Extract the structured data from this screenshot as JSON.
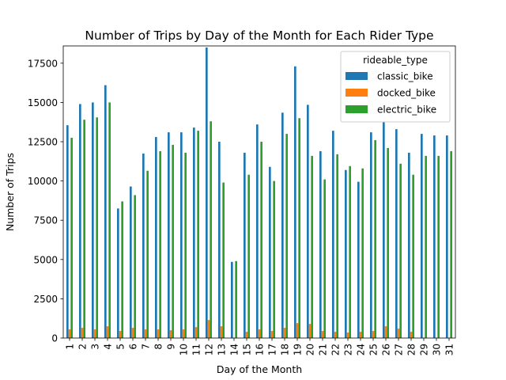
{
  "chart_data": {
    "type": "bar",
    "title": "Number of Trips by Day of the Month for Each Rider Type",
    "xlabel": "Day of the Month",
    "ylabel": "Number of Trips",
    "ylim": [
      0,
      18600
    ],
    "yticks": [
      0,
      2500,
      5000,
      7500,
      10000,
      12500,
      15000,
      17500
    ],
    "grid": false,
    "legend": {
      "title": "rideable_type",
      "placement": "top-right"
    },
    "categories": [
      "1",
      "2",
      "3",
      "4",
      "5",
      "6",
      "7",
      "8",
      "9",
      "10",
      "11",
      "12",
      "13",
      "14",
      "15",
      "16",
      "17",
      "18",
      "19",
      "20",
      "21",
      "22",
      "23",
      "24",
      "25",
      "26",
      "27",
      "28",
      "29",
      "30",
      "31"
    ],
    "series": [
      {
        "name": "classic_bike",
        "color": "#1f77b4",
        "values": [
          13550,
          14900,
          15000,
          16100,
          8250,
          9650,
          11750,
          12800,
          13100,
          13100,
          13400,
          18500,
          12500,
          4850,
          11800,
          13600,
          10900,
          14350,
          17300,
          14850,
          11900,
          13200,
          10700,
          9950,
          13100,
          13750,
          13300,
          11800,
          13000,
          12900,
          12900
        ]
      },
      {
        "name": "docked_bike",
        "color": "#ff7f0e",
        "values": [
          550,
          650,
          550,
          750,
          450,
          650,
          550,
          550,
          500,
          550,
          700,
          1150,
          750,
          0,
          400,
          550,
          450,
          650,
          950,
          900,
          450,
          400,
          350,
          400,
          450,
          750,
          600,
          400,
          0,
          0,
          0
        ]
      },
      {
        "name": "electric_bike",
        "color": "#2ca02c",
        "values": [
          12750,
          13900,
          14050,
          15000,
          8700,
          9100,
          10650,
          11900,
          12300,
          11800,
          13200,
          13800,
          9900,
          4900,
          10400,
          12500,
          10000,
          13000,
          14000,
          11600,
          10100,
          11700,
          10950,
          10800,
          12600,
          12100,
          11100,
          10400,
          11600,
          11600,
          11900
        ]
      }
    ]
  }
}
